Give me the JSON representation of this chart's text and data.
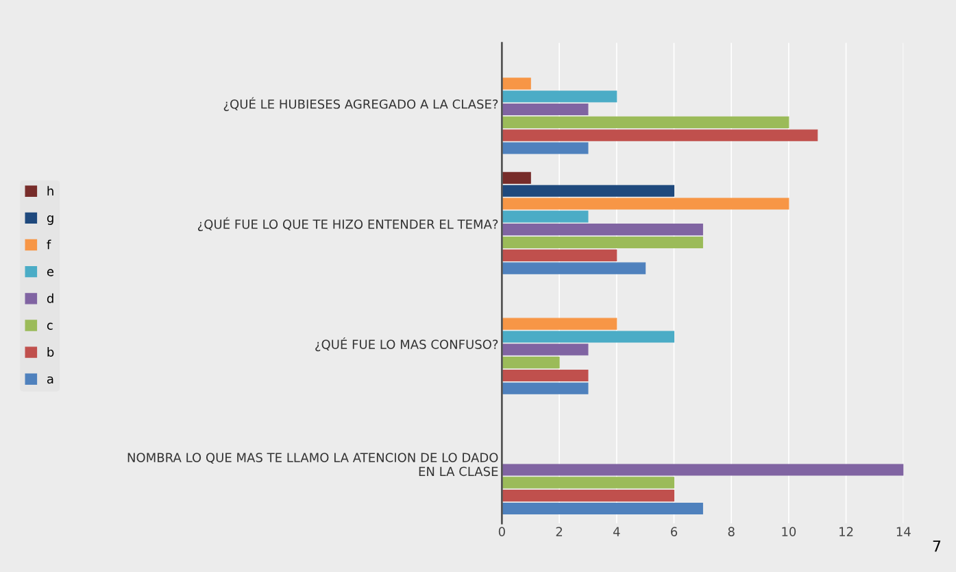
{
  "chart_data": {
    "type": "bar",
    "orientation": "horizontal",
    "categories": [
      "¿QUÉ LE HUBIESES AGREGADO A LA CLASE?",
      "¿QUÉ FUE LO QUE TE HIZO ENTENDER EL TEMA?",
      "¿QUÉ FUE LO MAS CONFUSO?",
      "NOMBRA LO QUE MAS TE LLAMO LA ATENCION DE LO DADO\nEN LA CLASE"
    ],
    "series": [
      {
        "name": "a",
        "color": "#4f81bd",
        "values": [
          3,
          5,
          3,
          7
        ]
      },
      {
        "name": "b",
        "color": "#c0504d",
        "values": [
          11,
          4,
          3,
          6
        ]
      },
      {
        "name": "c",
        "color": "#9bbb59",
        "values": [
          10,
          7,
          2,
          6
        ]
      },
      {
        "name": "d",
        "color": "#8064a2",
        "values": [
          3,
          7,
          3,
          14
        ]
      },
      {
        "name": "e",
        "color": "#4bacc6",
        "values": [
          4,
          3,
          6,
          0
        ]
      },
      {
        "name": "f",
        "color": "#f79646",
        "values": [
          1,
          10,
          4,
          0
        ]
      },
      {
        "name": "g",
        "color": "#1f497d",
        "values": [
          0,
          6,
          0,
          0
        ]
      },
      {
        "name": "h",
        "color": "#772c2a",
        "values": [
          0,
          1,
          null,
          null
        ]
      }
    ],
    "xlim": [
      0,
      14
    ],
    "xticks": [
      0,
      2,
      4,
      6,
      8,
      10,
      12,
      14
    ],
    "grid": "x",
    "legend": "left",
    "annotations": [
      "7"
    ]
  }
}
